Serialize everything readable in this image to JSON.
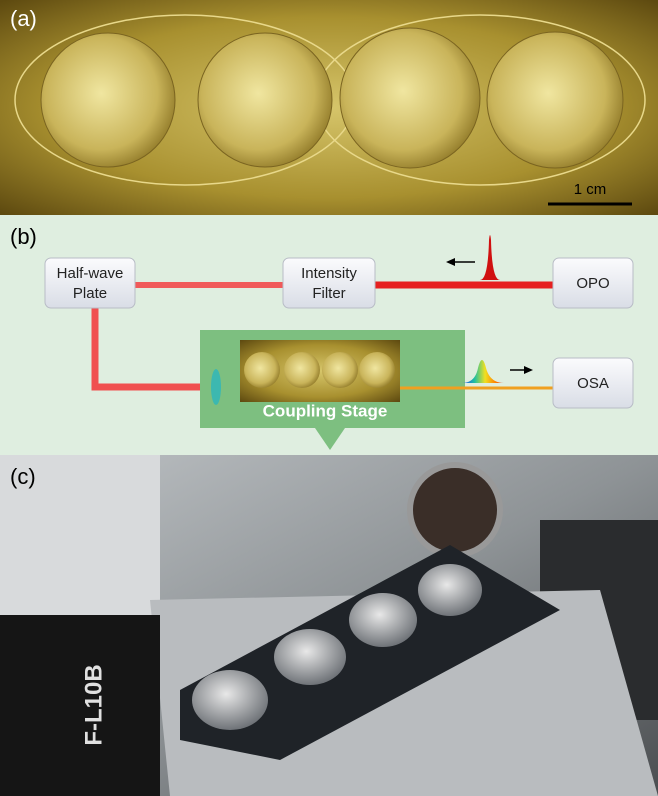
{
  "panel_a": {
    "label": "(a)",
    "scale_bar": "1 cm"
  },
  "panel_b": {
    "label": "(b)",
    "nodes": [
      {
        "label": [
          "Half-wave",
          "Plate"
        ]
      },
      {
        "label": [
          "Intensity",
          "Filter"
        ]
      },
      {
        "label": [
          "OPO"
        ]
      },
      {
        "label": [
          "OSA"
        ]
      }
    ],
    "stage_label": "Coupling Stage"
  },
  "panel_c": {
    "label": "(c)",
    "lens_text": "F-L10B"
  }
}
